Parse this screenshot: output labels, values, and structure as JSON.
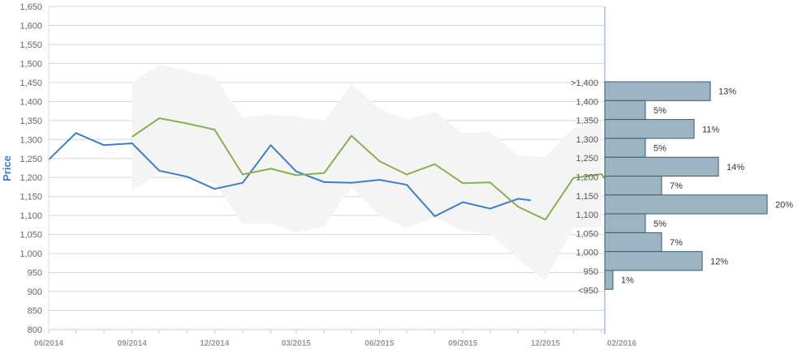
{
  "chart_data": {
    "type": "line",
    "ylabel": "Price",
    "ylim": [
      800,
      1650
    ],
    "yticks": [
      "1,650",
      "1,600",
      "1,550",
      "1,500",
      "1,450",
      "1,400",
      "1,350",
      "1,300",
      "1,250",
      "1,200",
      "1,150",
      "1,100",
      "1,050",
      "1,000",
      "950",
      "900",
      "850",
      "800"
    ],
    "xticks": [
      "06/2014",
      "09/2014",
      "12/2014",
      "03/2015",
      "06/2015",
      "09/2015",
      "12/2015",
      "02/2016"
    ],
    "series": [
      {
        "kind": "line",
        "color": "#3a7ec9",
        "points": [
          [
            "2014-06",
            1247
          ],
          [
            "2014-07",
            1317
          ],
          [
            "2014-08",
            1285
          ],
          [
            "2014-09",
            1290
          ],
          [
            "2014-10",
            1218
          ],
          [
            "2014-11",
            1202
          ],
          [
            "2014-12",
            1170
          ],
          [
            "2015-01",
            1186
          ],
          [
            "2015-02",
            1285
          ],
          [
            "2015-03",
            1216
          ],
          [
            "2015-04",
            1188
          ],
          [
            "2015-05",
            1186
          ],
          [
            "2015-06",
            1194
          ],
          [
            "2015-07",
            1181
          ],
          [
            "2015-08",
            1098
          ],
          [
            "2015-09",
            1135
          ],
          [
            "2015-10",
            1118
          ],
          [
            "2015-11",
            1144
          ],
          [
            "2015-11-15",
            1140
          ]
        ]
      },
      {
        "kind": "line",
        "color": "#8aaf4e",
        "points": [
          [
            "2014-09",
            1307
          ],
          [
            "2014-10",
            1356
          ],
          [
            "2014-11",
            1342
          ],
          [
            "2014-12",
            1326
          ],
          [
            "2015-01",
            1208
          ],
          [
            "2015-02",
            1223
          ],
          [
            "2015-03",
            1206
          ],
          [
            "2015-04",
            1212
          ],
          [
            "2015-05",
            1310
          ],
          [
            "2015-06",
            1243
          ],
          [
            "2015-07",
            1208
          ],
          [
            "2015-08",
            1235
          ],
          [
            "2015-09",
            1185
          ],
          [
            "2015-10",
            1187
          ],
          [
            "2015-11",
            1123
          ],
          [
            "2015-12",
            1089
          ],
          [
            "2016-01",
            1199
          ],
          [
            "2016-02",
            1209
          ],
          [
            "2016-02-05",
            1195
          ]
        ]
      },
      {
        "kind": "band",
        "color": "#f4f4f4",
        "upper": [
          [
            "2014-09",
            1450
          ],
          [
            "2014-10",
            1497
          ],
          [
            "2014-11",
            1480
          ],
          [
            "2014-12",
            1465
          ],
          [
            "2015-01",
            1358
          ],
          [
            "2015-02",
            1366
          ],
          [
            "2015-03",
            1360
          ],
          [
            "2015-04",
            1350
          ],
          [
            "2015-05",
            1445
          ],
          [
            "2015-06",
            1382
          ],
          [
            "2015-07",
            1352
          ],
          [
            "2015-08",
            1372
          ],
          [
            "2015-09",
            1316
          ],
          [
            "2015-10",
            1320
          ],
          [
            "2015-11",
            1258
          ],
          [
            "2015-12",
            1254
          ],
          [
            "2016-01",
            1330
          ],
          [
            "2016-02",
            1350
          ]
        ],
        "lower": [
          [
            "2014-09",
            1165
          ],
          [
            "2014-10",
            1213
          ],
          [
            "2014-11",
            1203
          ],
          [
            "2014-12",
            1186
          ],
          [
            "2015-01",
            1078
          ],
          [
            "2015-02",
            1080
          ],
          [
            "2015-03",
            1056
          ],
          [
            "2015-04",
            1072
          ],
          [
            "2015-05",
            1175
          ],
          [
            "2015-06",
            1100
          ],
          [
            "2015-07",
            1068
          ],
          [
            "2015-08",
            1096
          ],
          [
            "2015-09",
            1060
          ],
          [
            "2015-10",
            1052
          ],
          [
            "2015-11",
            986
          ],
          [
            "2015-12",
            928
          ],
          [
            "2016-01",
            1068
          ],
          [
            "2016-02",
            1070
          ]
        ]
      }
    ],
    "distribution": {
      "bar_color": "#9db4c2",
      "bins": [
        {
          "label": ">1,400",
          "percent": 13,
          "pct_label": "13%"
        },
        {
          "label": "1,400",
          "percent": 5,
          "pct_label": "5%"
        },
        {
          "label": "1,350",
          "percent": 11,
          "pct_label": "11%"
        },
        {
          "label": "1,300",
          "percent": 5,
          "pct_label": "5%"
        },
        {
          "label": "1,250",
          "percent": 14,
          "pct_label": "14%"
        },
        {
          "label": "1,200",
          "percent": 7,
          "pct_label": "7%"
        },
        {
          "label": "1,150",
          "percent": 20,
          "pct_label": "20%"
        },
        {
          "label": "1,100",
          "percent": 5,
          "pct_label": "5%"
        },
        {
          "label": "1,050",
          "percent": 7,
          "pct_label": "7%"
        },
        {
          "label": "1,000",
          "percent": 12,
          "pct_label": "12%"
        },
        {
          "label": "950",
          "percent": 1,
          "pct_label": "1%"
        },
        {
          "label": "<950",
          "percent": 0,
          "pct_label": ""
        }
      ]
    }
  }
}
